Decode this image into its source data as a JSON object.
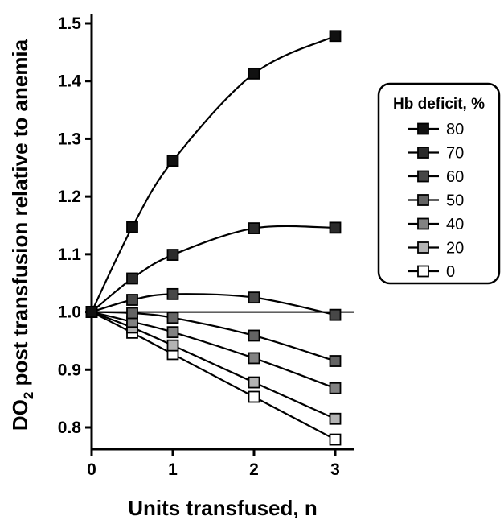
{
  "chart_data": {
    "type": "line",
    "title": "",
    "xlabel": "Units transfused, n",
    "ylabel": "DO",
    "ylabel_sub": "2",
    "ylabel_rest": " post transfusion relative to anemia",
    "xlim": [
      0,
      3.3
    ],
    "ylim": [
      0.76,
      1.51
    ],
    "x_ticks": [
      "0",
      "1",
      "2",
      "3"
    ],
    "y_ticks": [
      "0.8",
      "0.9",
      "1.0",
      "1.1",
      "1.2",
      "1.3",
      "1.4",
      "1.5"
    ],
    "reference_line_y": 1.0,
    "x": [
      0,
      0.5,
      1,
      2,
      3
    ],
    "legend": {
      "title": "Hb deficit, %",
      "placement": "right"
    },
    "series": [
      {
        "name": "80",
        "color": "#111111",
        "values": [
          1.0,
          1.147,
          1.262,
          1.413,
          1.478
        ]
      },
      {
        "name": "70",
        "color": "#2b2b2b",
        "values": [
          1.0,
          1.058,
          1.099,
          1.145,
          1.146
        ]
      },
      {
        "name": "60",
        "color": "#474747",
        "values": [
          1.0,
          1.021,
          1.031,
          1.025,
          0.995
        ]
      },
      {
        "name": "50",
        "color": "#646464",
        "values": [
          1.0,
          0.998,
          0.99,
          0.959,
          0.915
        ]
      },
      {
        "name": "40",
        "color": "#828282",
        "values": [
          1.0,
          0.983,
          0.965,
          0.92,
          0.868
        ]
      },
      {
        "name": "20",
        "color": "#b4b4b4",
        "values": [
          1.0,
          0.973,
          0.942,
          0.878,
          0.815
        ]
      },
      {
        "name": "0",
        "color": "#ffffff",
        "values": [
          1.0,
          0.964,
          0.927,
          0.853,
          0.779
        ]
      }
    ]
  }
}
